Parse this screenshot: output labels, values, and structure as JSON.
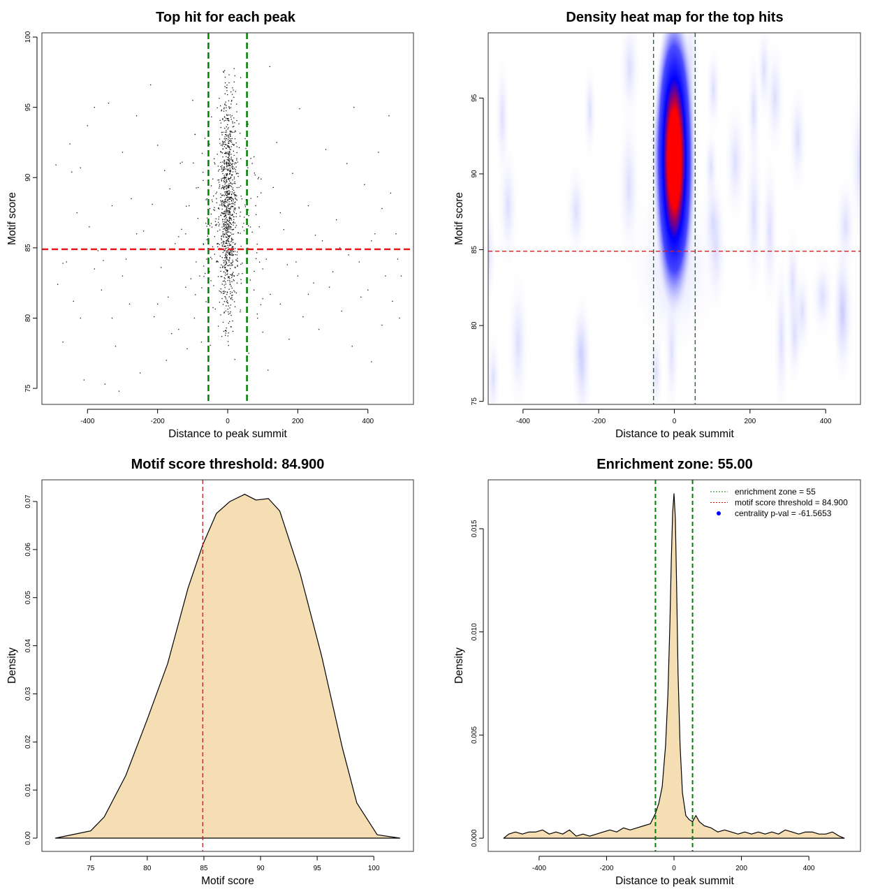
{
  "chart_data": [
    {
      "type": "scatter",
      "title": "Top hit for each peak",
      "xlabel": "Distance to peak summit",
      "ylabel": "Motif score",
      "xlim": [
        -530,
        530
      ],
      "ylim": [
        73.86,
        100.3
      ],
      "xticks": [
        "-400",
        "-200",
        "0",
        "200",
        "400"
      ],
      "xtick_values": [
        -400,
        -200,
        0,
        200,
        400
      ],
      "yticks": [
        "75",
        "80",
        "85",
        "90",
        "95",
        "100"
      ],
      "ytick_values": [
        75,
        80,
        85,
        90,
        95,
        100
      ],
      "vlines": [
        -55,
        55
      ],
      "hline": 84.9,
      "vline_color": "#008000",
      "hline_color": "#e31a1c",
      "points": [
        [
          -490,
          90.9
        ],
        [
          -485,
          82.4
        ],
        [
          -470,
          78.3
        ],
        [
          -450,
          92.4
        ],
        [
          -445,
          90.4
        ],
        [
          -430,
          87.5
        ],
        [
          -420,
          90.7
        ],
        [
          -410,
          75.6
        ],
        [
          -400,
          93.7
        ],
        [
          -395,
          86.5
        ],
        [
          -380,
          95
        ],
        [
          -370,
          84.8
        ],
        [
          -360,
          82
        ],
        [
          -350,
          75.3
        ],
        [
          -340,
          95.3
        ],
        [
          -330,
          88
        ],
        [
          -320,
          78
        ],
        [
          -310,
          74.8
        ],
        [
          -300,
          91.8
        ],
        [
          -290,
          84.2
        ],
        [
          -280,
          81
        ],
        [
          -260,
          94.4
        ],
        [
          -250,
          76.1
        ],
        [
          -240,
          86.2
        ],
        [
          -220,
          96.6
        ],
        [
          -210,
          80.1
        ],
        [
          -200,
          92.3
        ],
        [
          -190,
          83.6
        ],
        [
          -175,
          77
        ],
        [
          -165,
          89.2
        ],
        [
          -150,
          85.3
        ],
        [
          -140,
          79.2
        ],
        [
          -130,
          91.1
        ],
        [
          -120,
          82.2
        ],
        [
          -110,
          88
        ],
        [
          -100,
          95.5
        ],
        [
          -95,
          80
        ],
        [
          -85,
          87.1
        ],
        [
          -75,
          78.3
        ],
        [
          -65,
          92.8
        ],
        [
          -60,
          84.2
        ],
        [
          -80,
          83
        ],
        [
          -120,
          86
        ],
        [
          -200,
          81
        ],
        [
          -260,
          86
        ],
        [
          -330,
          80
        ],
        [
          -420,
          80
        ],
        [
          -460,
          84
        ],
        [
          -380,
          83.5
        ],
        [
          -300,
          83
        ],
        [
          -230,
          84.9
        ],
        [
          -170,
          81.5
        ],
        [
          -140,
          85.8
        ],
        [
          -90,
          84
        ],
        [
          70,
          91
        ],
        [
          75,
          82
        ],
        [
          80,
          88
        ],
        [
          90,
          86.5
        ],
        [
          100,
          79
        ],
        [
          110,
          84.2
        ],
        [
          115,
          76.3
        ],
        [
          120,
          97.9
        ],
        [
          130,
          89.3
        ],
        [
          140,
          92.5
        ],
        [
          150,
          81
        ],
        [
          160,
          86.3
        ],
        [
          175,
          78.5
        ],
        [
          185,
          90.3
        ],
        [
          195,
          84
        ],
        [
          205,
          94.9
        ],
        [
          215,
          80.1
        ],
        [
          230,
          88
        ],
        [
          245,
          82.5
        ],
        [
          260,
          79.2
        ],
        [
          270,
          85.5
        ],
        [
          280,
          92
        ],
        [
          300,
          83.3
        ],
        [
          310,
          87
        ],
        [
          325,
          80.5
        ],
        [
          340,
          91
        ],
        [
          355,
          78
        ],
        [
          360,
          95
        ],
        [
          375,
          84
        ],
        [
          390,
          89.5
        ],
        [
          400,
          82
        ],
        [
          410,
          76.9
        ],
        [
          420,
          86
        ],
        [
          430,
          91.8
        ],
        [
          440,
          79.5
        ],
        [
          450,
          83
        ],
        [
          460,
          94.4
        ],
        [
          470,
          81.2
        ],
        [
          480,
          86
        ],
        [
          490,
          80
        ],
        [
          495,
          83
        ],
        [
          440,
          87.8
        ],
        [
          380,
          81.5
        ],
        [
          320,
          85
        ],
        [
          250,
          85.9
        ],
        [
          200,
          83
        ],
        [
          150,
          87.5
        ],
        [
          100,
          83.5
        ],
        [
          85,
          80
        ],
        [
          60,
          77.5
        ],
        [
          -55,
          79
        ],
        [
          -470,
          83.9
        ],
        [
          -440,
          81.2
        ],
        [
          -355,
          84.1
        ],
        [
          -275,
          88.5
        ],
        [
          -215,
          88.1
        ],
        [
          -180,
          90.5
        ],
        [
          -160,
          78.9
        ],
        [
          -105,
          82.8
        ],
        [
          -70,
          89.8
        ],
        [
          95,
          89.9
        ],
        [
          170,
          83.8
        ],
        [
          230,
          81.7
        ],
        [
          290,
          82.2
        ],
        [
          345,
          84.5
        ],
        [
          410,
          85.5
        ],
        [
          465,
          88.9
        ],
        [
          485,
          84.2
        ]
      ],
      "central_cluster": {
        "x_center": 0,
        "x_sd": 12,
        "y_range": [
          77,
          99.2
        ],
        "n": 900
      },
      "near_cluster": {
        "x_center": 0,
        "x_sd": 45,
        "y_range": [
          76.5,
          97
        ],
        "n": 220
      }
    },
    {
      "type": "heatmap",
      "title": "Density heat map for the top hits",
      "xlabel": "Distance to peak summit",
      "ylabel": "Motif score",
      "xlim": [
        -492,
        492
      ],
      "ylim": [
        74.8,
        99.3
      ],
      "xticks": [
        "-400",
        "-200",
        "0",
        "200",
        "400"
      ],
      "xtick_values": [
        -400,
        -200,
        0,
        200,
        400
      ],
      "yticks": [
        "75",
        "80",
        "85",
        "90",
        "95"
      ],
      "ytick_values": [
        75,
        80,
        85,
        90,
        95
      ],
      "hotspot": {
        "x": 0,
        "y": 91,
        "x_spread": 28,
        "y_spread": 8.5
      },
      "vlines": [
        -55,
        55
      ],
      "hline": 84.9,
      "colors": {
        "low": "#ffffff",
        "mid": "#0000ff",
        "high": "#ff0000"
      }
    },
    {
      "type": "area",
      "title": "Motif score threshold: 84.900",
      "xlabel": "Motif score",
      "ylabel": "Density",
      "xlim": [
        70.7,
        103.5
      ],
      "ylim": [
        -0.00276,
        0.0745
      ],
      "xticks": [
        "75",
        "80",
        "85",
        "90",
        "95",
        "100"
      ],
      "xtick_values": [
        75,
        80,
        85,
        90,
        95,
        100
      ],
      "yticks": [
        "0.00",
        "0.01",
        "0.02",
        "0.03",
        "0.04",
        "0.05",
        "0.06",
        "0.07"
      ],
      "ytick_values": [
        0,
        0.01,
        0.02,
        0.03,
        0.04,
        0.05,
        0.06,
        0.07
      ],
      "x": [
        71.9,
        75,
        76.2,
        78.1,
        80,
        81.8,
        83.6,
        84.9,
        86.1,
        87.3,
        88.6,
        89.6,
        90.7,
        91.7,
        93.5,
        95.4,
        97.2,
        98.5,
        100.3,
        102.3
      ],
      "y": [
        0,
        0.0015,
        0.0044,
        0.013,
        0.0247,
        0.0363,
        0.052,
        0.061,
        0.0675,
        0.07,
        0.0715,
        0.0703,
        0.0706,
        0.068,
        0.055,
        0.0378,
        0.019,
        0.0073,
        0.0007,
        0
      ],
      "vline": 84.9,
      "fill": "#f5deb3",
      "vline_color": "#b22222"
    },
    {
      "type": "area",
      "title": "Enrichment zone: 55.00",
      "xlabel": "Distance to peak summit",
      "ylabel": "Density",
      "xlim": [
        -551,
        553
      ],
      "ylim": [
        -0.00064,
        0.01737
      ],
      "xticks": [
        "-400",
        "-200",
        "0",
        "200",
        "400"
      ],
      "xtick_values": [
        -400,
        -200,
        0,
        200,
        400
      ],
      "yticks": [
        "0.000",
        "0.005",
        "0.010",
        "0.015"
      ],
      "ytick_values": [
        0,
        0.005,
        0.01,
        0.015
      ],
      "x": [
        -505,
        -490,
        -470,
        -450,
        -430,
        -410,
        -390,
        -370,
        -350,
        -330,
        -310,
        -290,
        -270,
        -250,
        -230,
        -210,
        -190,
        -170,
        -150,
        -130,
        -110,
        -90,
        -70,
        -55,
        -45,
        -35,
        -25,
        -18,
        -12,
        -8,
        -4,
        0,
        4,
        8,
        12,
        18,
        25,
        35,
        45,
        55,
        65,
        75,
        90,
        110,
        130,
        150,
        170,
        190,
        210,
        230,
        250,
        270,
        290,
        310,
        330,
        350,
        370,
        390,
        410,
        430,
        450,
        470,
        490,
        505
      ],
      "y": [
        0,
        0.0002,
        0.0003,
        0.0002,
        0.0003,
        0.0003,
        0.0004,
        0.0002,
        0.0003,
        0.0002,
        0.0004,
        0.0001,
        0.0002,
        0.0001,
        0.0002,
        0.0003,
        0.0004,
        0.0003,
        0.0005,
        0.0004,
        0.0005,
        0.0006,
        0.0007,
        0.0012,
        0.0017,
        0.0025,
        0.0045,
        0.007,
        0.0105,
        0.0135,
        0.0158,
        0.0167,
        0.0155,
        0.012,
        0.008,
        0.0045,
        0.0022,
        0.0011,
        0.0009,
        0.0008,
        0.0011,
        0.0008,
        0.0006,
        0.0005,
        0.0003,
        0.0004,
        0.0003,
        0.0002,
        0.0003,
        0.0002,
        0.0003,
        0.0002,
        0.0003,
        0.0002,
        0.0004,
        0.0003,
        0.0002,
        0.0003,
        0.0003,
        0.0002,
        0.0002,
        0.0003,
        0.0001,
        0
      ],
      "vlines": [
        -55,
        55
      ],
      "fill": "#f5deb3",
      "vline_color": "#008000",
      "legend": {
        "placement": "top-right",
        "entries": [
          {
            "label": "enrichment zone = 55",
            "color": "#008000",
            "style": "dotted-line"
          },
          {
            "label": "motif score threshold = 84.900",
            "color": "#ff0000",
            "style": "dotted-line"
          },
          {
            "label": "centrality p-val = -61.5653",
            "color": "#0000ff",
            "style": "point"
          }
        ]
      }
    }
  ]
}
